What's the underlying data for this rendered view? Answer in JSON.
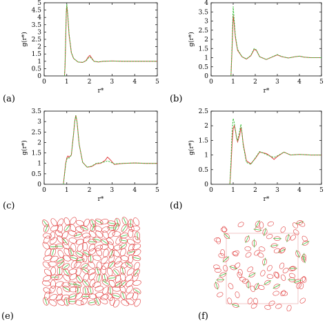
{
  "panel_labels": [
    "(a)",
    "(b)",
    "(c)",
    "(d)",
    "(e)",
    "(f)"
  ],
  "colors": {
    "red": "#e03a3a",
    "green": "#3cc03c",
    "frame": "#000000"
  },
  "chart_data": [
    {
      "type": "line",
      "panel": "(a)",
      "xlabel": "r*",
      "ylabel": "g(r*)",
      "xlim": [
        0,
        5
      ],
      "ylim": [
        0,
        5
      ],
      "xticks": [
        "0",
        "1",
        "2",
        "3",
        "4",
        "5"
      ],
      "yticks": [
        "0",
        "0.5",
        "1",
        "1.5",
        "2",
        "2.5",
        "3",
        "3.5",
        "4",
        "4.5",
        "5"
      ],
      "series": [
        {
          "color": "red",
          "style": "solid",
          "x": [
            0.9,
            0.92,
            0.95,
            0.98,
            1.0,
            1.04,
            1.1,
            1.2,
            1.3,
            1.5,
            1.7,
            1.85,
            1.95,
            2.02,
            2.1,
            2.2,
            2.4,
            2.6,
            3.0,
            3.5,
            4.0,
            4.5,
            5.0
          ],
          "y": [
            0.0,
            0.6,
            2.4,
            4.3,
            4.8,
            4.2,
            2.8,
            1.6,
            1.2,
            0.95,
            0.92,
            1.05,
            1.3,
            1.4,
            1.22,
            1.0,
            0.95,
            1.0,
            1.02,
            1.0,
            1.0,
            1.0,
            1.0
          ]
        },
        {
          "color": "green",
          "style": "dashed",
          "x": [
            0.9,
            0.92,
            0.95,
            0.98,
            1.0,
            1.04,
            1.1,
            1.2,
            1.3,
            1.5,
            1.7,
            1.85,
            1.95,
            2.02,
            2.1,
            2.2,
            2.4,
            2.6,
            3.0,
            3.5,
            4.0,
            4.5,
            5.0
          ],
          "y": [
            0.0,
            0.7,
            2.6,
            4.5,
            4.9,
            4.3,
            2.9,
            1.6,
            1.2,
            0.95,
            0.93,
            1.03,
            1.22,
            1.3,
            1.17,
            1.0,
            0.96,
            1.0,
            1.02,
            1.0,
            1.0,
            1.0,
            1.0
          ]
        }
      ]
    },
    {
      "type": "line",
      "panel": "(b)",
      "xlabel": "r*",
      "ylabel": "g(r*)",
      "xlim": [
        0,
        5
      ],
      "ylim": [
        0,
        4
      ],
      "xticks": [
        "0",
        "1",
        "2",
        "3",
        "4",
        "5"
      ],
      "yticks": [
        "0",
        "0.5",
        "1",
        "1.5",
        "2",
        "2.5",
        "3",
        "3.5",
        "4"
      ],
      "series": [
        {
          "color": "red",
          "style": "solid",
          "x": [
            0.9,
            0.95,
            1.0,
            1.03,
            1.1,
            1.2,
            1.4,
            1.6,
            1.8,
            1.95,
            2.05,
            2.2,
            2.5,
            2.8,
            3.0,
            3.2,
            3.5,
            3.8,
            4.0,
            4.2,
            4.5,
            5.0
          ],
          "y": [
            0.0,
            1.5,
            3.3,
            3.0,
            2.1,
            1.4,
            1.05,
            0.92,
            1.1,
            1.45,
            1.4,
            1.05,
            0.9,
            1.05,
            1.15,
            1.05,
            0.98,
            1.05,
            1.08,
            1.03,
            1.0,
            1.0
          ]
        },
        {
          "color": "green",
          "style": "dashed",
          "x": [
            0.9,
            0.95,
            1.0,
            1.03,
            1.1,
            1.2,
            1.4,
            1.6,
            1.8,
            1.95,
            2.05,
            2.2,
            2.5,
            2.8,
            3.0,
            3.2,
            3.5,
            3.8,
            4.0,
            4.2,
            4.5,
            5.0
          ],
          "y": [
            0.0,
            1.7,
            3.8,
            3.3,
            2.2,
            1.45,
            1.05,
            0.93,
            1.12,
            1.5,
            1.42,
            1.05,
            0.9,
            1.06,
            1.17,
            1.06,
            0.98,
            1.05,
            1.08,
            1.03,
            1.0,
            1.0
          ]
        }
      ]
    },
    {
      "type": "line",
      "panel": "(c)",
      "xlabel": "r*",
      "ylabel": "g(r*)",
      "xlim": [
        0,
        5
      ],
      "ylim": [
        0,
        3.5
      ],
      "xticks": [
        "0",
        "1",
        "2",
        "3",
        "4",
        "5"
      ],
      "yticks": [
        "0",
        "0.5",
        "1",
        "1.5",
        "2",
        "2.5",
        "3",
        "3.5"
      ],
      "series": [
        {
          "color": "red",
          "style": "solid",
          "x": [
            0.85,
            0.9,
            0.95,
            1.0,
            1.05,
            1.1,
            1.2,
            1.3,
            1.35,
            1.4,
            1.45,
            1.55,
            1.7,
            1.9,
            2.1,
            2.3,
            2.5,
            2.7,
            2.8,
            2.9,
            3.1,
            3.5,
            4.0,
            4.5,
            5.0
          ],
          "y": [
            0.0,
            0.5,
            1.0,
            1.25,
            1.35,
            1.3,
            1.4,
            2.4,
            3.0,
            3.3,
            3.0,
            1.9,
            1.05,
            0.82,
            0.85,
            0.98,
            1.0,
            1.15,
            1.3,
            1.2,
            0.95,
            1.0,
            1.02,
            1.0,
            1.0
          ]
        },
        {
          "color": "green",
          "style": "dashed",
          "x": [
            0.85,
            0.9,
            0.95,
            1.0,
            1.05,
            1.1,
            1.2,
            1.3,
            1.35,
            1.4,
            1.45,
            1.55,
            1.7,
            1.9,
            2.1,
            2.3,
            2.5,
            2.7,
            2.8,
            2.9,
            3.1,
            3.5,
            4.0,
            4.5,
            5.0
          ],
          "y": [
            0.0,
            0.45,
            0.95,
            1.2,
            1.28,
            1.25,
            1.4,
            2.4,
            3.0,
            3.3,
            3.0,
            1.9,
            1.05,
            0.82,
            0.87,
            1.0,
            1.03,
            1.08,
            1.12,
            1.08,
            0.97,
            1.0,
            1.02,
            1.0,
            1.0
          ]
        }
      ]
    },
    {
      "type": "line",
      "panel": "(d)",
      "xlabel": "r*",
      "ylabel": "g(r*)",
      "xlim": [
        0,
        5
      ],
      "ylim": [
        0,
        2.5
      ],
      "xticks": [
        "0",
        "1",
        "2",
        "3",
        "4",
        "5"
      ],
      "yticks": [
        "0",
        "0.5",
        "1",
        "1.5",
        "2",
        "2.5"
      ],
      "series": [
        {
          "color": "red",
          "style": "solid",
          "x": [
            0.85,
            0.9,
            0.95,
            1.0,
            1.05,
            1.1,
            1.15,
            1.2,
            1.3,
            1.35,
            1.4,
            1.45,
            1.6,
            1.8,
            2.0,
            2.2,
            2.5,
            2.7,
            2.85,
            3.0,
            3.3,
            3.6,
            4.0,
            4.5,
            5.0
          ],
          "y": [
            0.0,
            0.6,
            1.4,
            1.9,
            2.0,
            1.85,
            1.6,
            1.45,
            1.7,
            1.95,
            1.75,
            1.4,
            0.8,
            0.7,
            0.88,
            1.1,
            1.05,
            0.95,
            0.85,
            0.95,
            1.1,
            1.0,
            1.02,
            1.0,
            1.0
          ]
        },
        {
          "color": "green",
          "style": "dashed",
          "x": [
            0.85,
            0.9,
            0.95,
            1.0,
            1.05,
            1.1,
            1.15,
            1.2,
            1.3,
            1.35,
            1.4,
            1.45,
            1.6,
            1.8,
            2.0,
            2.2,
            2.5,
            2.7,
            2.85,
            3.0,
            3.3,
            3.6,
            4.0,
            4.5,
            5.0
          ],
          "y": [
            0.0,
            0.8,
            1.8,
            2.25,
            2.1,
            1.85,
            1.6,
            1.5,
            1.85,
            2.05,
            1.75,
            1.35,
            0.75,
            0.68,
            0.9,
            1.12,
            1.02,
            0.95,
            0.92,
            0.97,
            1.1,
            1.0,
            1.02,
            1.0,
            1.0
          ]
        }
      ]
    }
  ]
}
